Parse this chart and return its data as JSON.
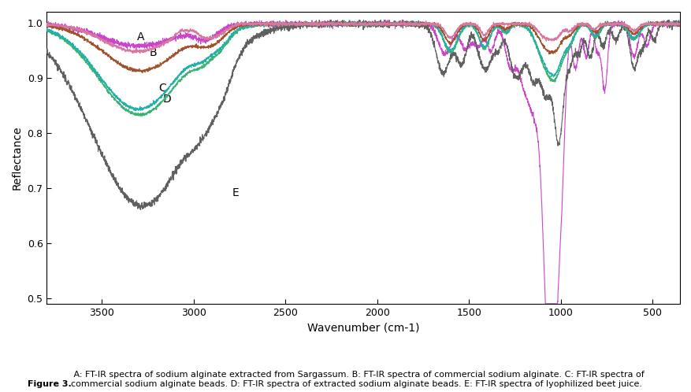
{
  "xlabel": "Wavenumber (cm-1)",
  "ylabel": "Reflectance",
  "xlim": [
    3800,
    350
  ],
  "ylim": [
    0.49,
    1.02
  ],
  "yticks": [
    0.5,
    0.6,
    0.7,
    0.8,
    0.9,
    1.0
  ],
  "xticks": [
    3500,
    3000,
    2500,
    2000,
    1500,
    1000,
    500
  ],
  "line_colors": {
    "A": "#d87fa0",
    "B": "#a0522d",
    "C": "#20b2aa",
    "D": "#3cb371",
    "E_gray": "#808080",
    "E_pink": "#cc44cc"
  },
  "caption_bold": "Figure 3.",
  "caption_normal": " A: FT-IR spectra of sodium alginate extracted from Sargassum. B: FT-IR spectra of commercial sodium alginate. C: FT-IR spectra of commercial sodium alginate beads. D: FT-IR spectra of extracted sodium alginate beads. E: FT-IR spectra of lyophilized beet juice.",
  "background": "#ffffff"
}
